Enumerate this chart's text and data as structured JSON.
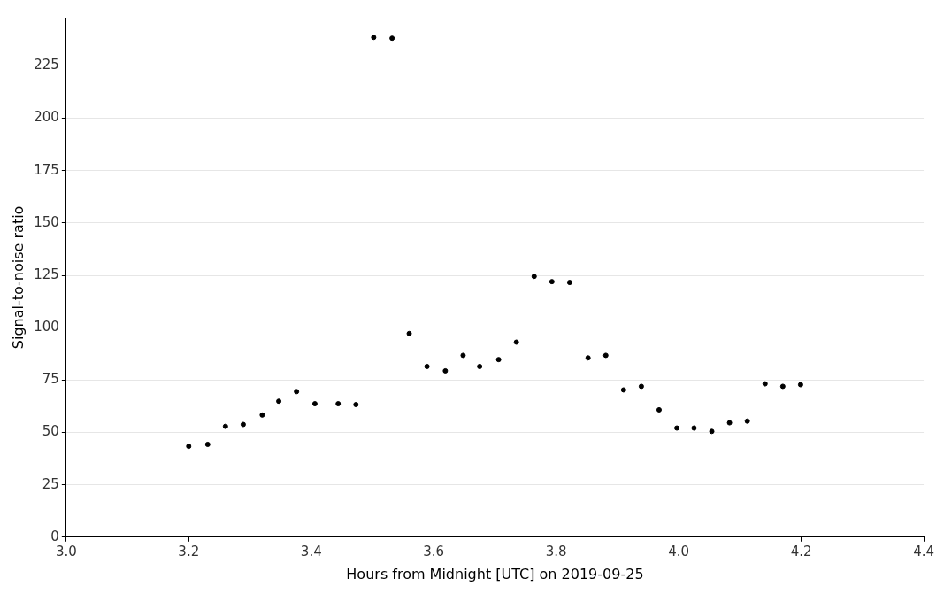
{
  "chart_data": {
    "type": "scatter",
    "xlabel": "Hours from Midnight [UTC] on 2019-09-25",
    "ylabel": "Signal-to-noise ratio",
    "x": [
      3.2,
      3.231,
      3.26,
      3.289,
      3.32,
      3.347,
      3.376,
      3.406,
      3.444,
      3.473,
      3.502,
      3.532,
      3.56,
      3.589,
      3.619,
      3.648,
      3.675,
      3.706,
      3.735,
      3.764,
      3.793,
      3.822,
      3.852,
      3.881,
      3.91,
      3.939,
      3.968,
      3.997,
      4.025,
      4.054,
      4.083,
      4.112,
      4.141,
      4.17,
      4.199
    ],
    "series": [
      {
        "color": "#000000",
        "values": [
          43.4,
          44.3,
          52.9,
          53.8,
          58.3,
          64.9,
          69.5,
          63.7,
          63.7,
          63.3,
          238.6,
          238.2,
          97.2,
          81.5,
          79.4,
          86.8,
          81.5,
          84.8,
          93.1,
          124.5,
          122.0,
          121.6,
          85.6,
          86.8,
          70.3,
          72.0,
          60.8,
          52.1,
          52.1,
          50.5,
          54.6,
          55.4,
          73.2,
          72.0,
          72.8
        ]
      }
    ],
    "xlim": [
      3.0,
      4.4
    ],
    "xticks": [
      {
        "value": 3.0,
        "label": "3.0"
      },
      3.2,
      3.4,
      3.6,
      3.8,
      {
        "value": 4.0,
        "label": "4.0"
      },
      4.2,
      4.4
    ],
    "ylim": [
      0,
      248
    ],
    "yticks": [
      0,
      25,
      50,
      75,
      100,
      125,
      150,
      175,
      200,
      225
    ],
    "grid": "y",
    "marker": "circle",
    "legend": false
  }
}
